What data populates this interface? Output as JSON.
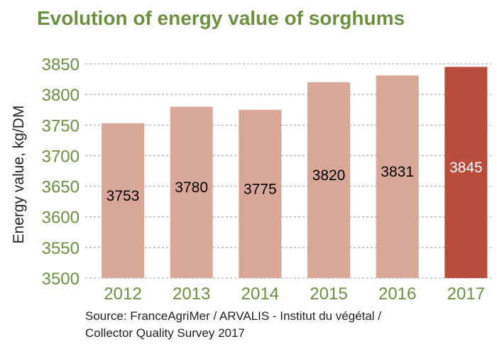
{
  "chart_data": {
    "type": "bar",
    "title": "Evolution of energy value of sorghums",
    "ylabel": "Energy value, kg/DM",
    "xlabel": "",
    "categories": [
      "2012",
      "2013",
      "2014",
      "2015",
      "2016",
      "2017"
    ],
    "values": [
      3753,
      3780,
      3775,
      3820,
      3831,
      3845
    ],
    "data_labels": [
      "3753",
      "3780",
      "3775",
      "3820",
      "3831",
      "3845"
    ],
    "ylim": [
      3500,
      3850
    ],
    "yticks": [
      "3500",
      "3550",
      "3600",
      "3650",
      "3700",
      "3750",
      "3800",
      "3850"
    ],
    "grid": "horizontal dashed",
    "colors": {
      "bar": "#d9a797",
      "highlight_bar": "#b84d3e",
      "axis_text": "#6b9140",
      "grid": "#999999",
      "title": "#6b9140"
    },
    "highlight_index": 5
  },
  "source": {
    "line1": "Source: FranceAgriMer / ARVALIS - Institut du végétal  /",
    "line2": "Collector Quality Survey 2017"
  }
}
